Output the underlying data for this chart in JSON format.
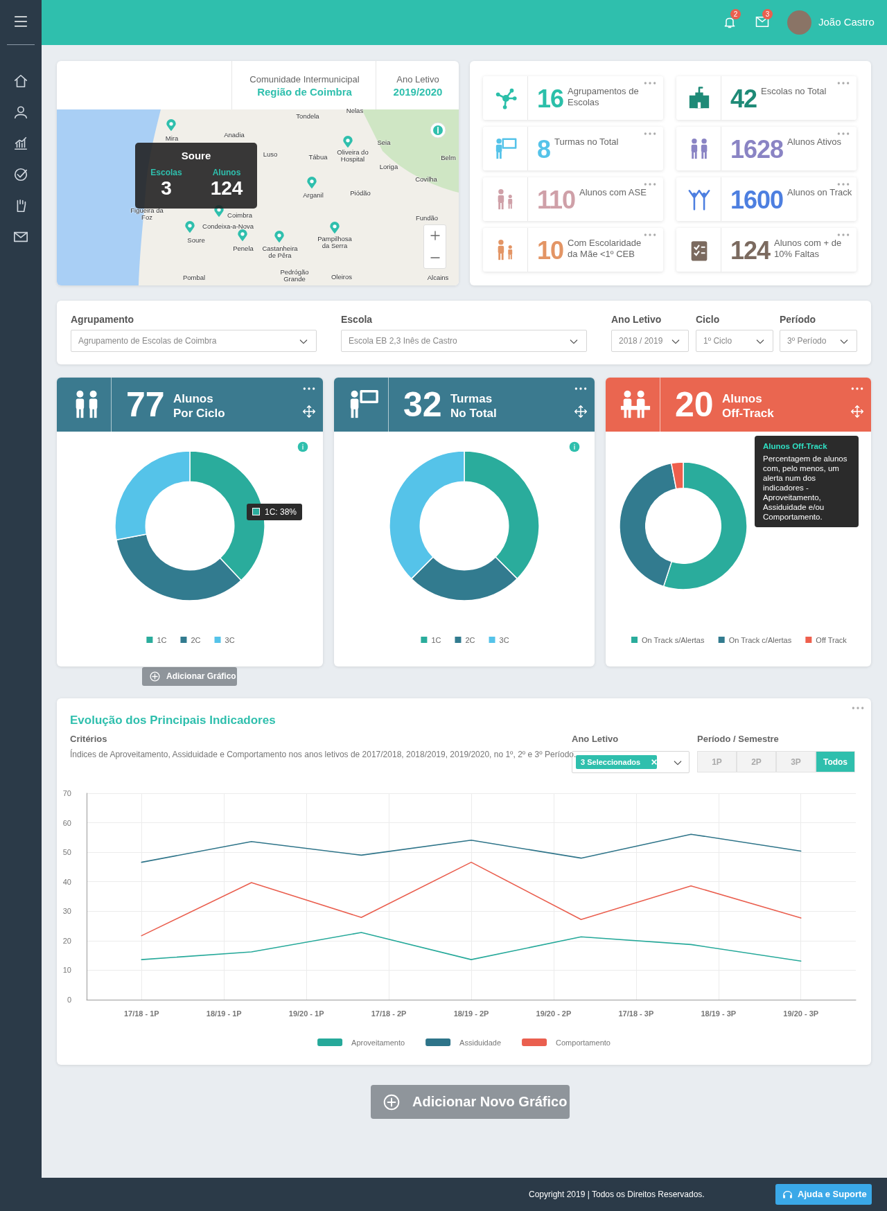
{
  "chart_data": [
    {
      "type": "other",
      "annotations": [
        "2",
        "3",
        "João Castro",
        "Adicionar Gráfico",
        "Adicionar Novo Gráfico",
        "Copyright 2019 | Todos os Direitos Reservados.",
        "Ajuda e Suporte"
      ]
    },
    {
      "type": "other",
      "title": "Comunidade Intermunicipal",
      "subtitle": "Região de Coimbra",
      "annotations": [
        "Ano Letivo",
        "2019/2020",
        "Soure",
        "Escolas",
        "3",
        "Alunos",
        "124",
        "Tondela",
        "Nelas",
        "Mira",
        "Anadia",
        "Luso",
        "Seia",
        "Tábua",
        "Oliveira do Hospital",
        "Loriga",
        "Belm",
        "Covilha",
        "Arganil",
        "Piódão",
        "Figueira da Foz",
        "Coimbra",
        "Condeixa-a-Nova",
        "Soure",
        "Penela",
        "Castanheira de Pêra",
        "Pampilhosa da Serra",
        "Fundão",
        "Pombal",
        "Pedrógão Grande",
        "Oleiros",
        "Alcains"
      ]
    },
    {
      "type": "other",
      "annotations": [
        "16",
        "Agrupamentos de Escolas",
        "42",
        "Escolas no Total",
        "8",
        "Turmas no Total",
        "1628",
        "Alunos Ativos",
        "110",
        "Alunos com ASE",
        "1600",
        "Alunos on Track",
        "10",
        "Com Escolaridade da Mãe <1º CEB",
        "124",
        "Alunos com + de 10% Faltas"
      ],
      "colors": [
        "#2bbfa9",
        "#1e8a77",
        "#55c3e9",
        "#8a84c4",
        "#cfa0a8",
        "#4d7fe0",
        "#e39565",
        "#7b6a5f"
      ]
    },
    {
      "type": "other",
      "annotations": [
        "Agrupamento",
        "Agrupamento de Escolas de Coimbra",
        "Escola",
        "Escola EB 2,3 Inês de Castro",
        "Ano Letivo",
        "2018 / 2019",
        "Ciclo",
        "1º Ciclo",
        "Período",
        "3º Período"
      ]
    },
    {
      "type": "donut",
      "title": "77",
      "subtitle": "Alunos Por Ciclo",
      "categories": [
        "1C",
        "2C",
        "3C"
      ],
      "values": [
        38,
        34,
        28
      ],
      "colors": [
        "#2aac9c",
        "#327b8f",
        "#55c3e9"
      ],
      "legend": "bottom",
      "annotations": [
        "1C: 38%"
      ]
    },
    {
      "type": "donut",
      "title": "32",
      "subtitle": "Turmas No Total",
      "categories": [
        "1C",
        "2C",
        "3C"
      ],
      "values": [
        37.5,
        25,
        37.5
      ],
      "colors": [
        "#2aac9c",
        "#327b8f",
        "#55c3e9"
      ],
      "legend": "bottom"
    },
    {
      "type": "donut",
      "title": "20",
      "subtitle": "Alunos Off-Track",
      "categories": [
        "On Track s/Alertas",
        "On Track c/Alertas",
        "Off Track"
      ],
      "values": [
        55,
        42,
        3
      ],
      "colors": [
        "#2aac9c",
        "#327b8f",
        "#ee5f4d"
      ],
      "legend": "bottom",
      "annotations": [
        "Alunos Off-Track",
        "Percentagem de alunos com, pelo menos, um alerta num dos indicadores - Aproveitamento, Assiduidade e/ou Comportamento."
      ]
    },
    {
      "type": "line",
      "title": "Evolução dos Principais Indicadores",
      "annotations": [
        "Critérios",
        "Índices de Aproveitamento, Assiduidade e Comportamento nos anos letivos de 2017/2018, 2018/2019, 2019/2020, no 1º, 2º e 3º Período.",
        "Ano Letivo",
        "3 Seleccionados",
        "Período / Semestre",
        "1P",
        "2P",
        "3P",
        "Todos"
      ],
      "categories": [
        null,
        null,
        "17/18 - 1P",
        null,
        null,
        "18/19 - 1P",
        null,
        null,
        "19/20 - 1P",
        null,
        null,
        "17/18 - 2P",
        null,
        null,
        "18/19 - 2P",
        null,
        null,
        "19/20 - 2P",
        null,
        null,
        "17/18 - 3P",
        null,
        null,
        "18/19 - 3P",
        null,
        null,
        "19/20 - 3P",
        null,
        null
      ],
      "series": [
        {
          "name": "Aproveitamento",
          "color": "#26a99a",
          "values": [
            null,
            null,
            13.6,
            null,
            null,
            null,
            16.2,
            null,
            null,
            null,
            22.8,
            null,
            null,
            null,
            13.6,
            null,
            null,
            null,
            21.3,
            null,
            null,
            null,
            18.7,
            null,
            null,
            null,
            13.1,
            null,
            null
          ]
        },
        {
          "name": "Assiduidade",
          "color": "#2e7489",
          "values": [
            null,
            null,
            46.6,
            null,
            null,
            null,
            53.6,
            null,
            null,
            null,
            49,
            null,
            null,
            null,
            54.1,
            null,
            null,
            null,
            48,
            null,
            null,
            null,
            56.1,
            null,
            null,
            null,
            50.4,
            null,
            null
          ]
        },
        {
          "name": "Comportamento",
          "color": "#ea5f4f",
          "values": [
            null,
            null,
            21.7,
            null,
            null,
            null,
            39.7,
            null,
            null,
            null,
            27.9,
            null,
            null,
            null,
            46.6,
            null,
            null,
            null,
            27.2,
            null,
            null,
            null,
            38.6,
            null,
            null,
            null,
            27.7,
            null,
            null
          ]
        }
      ],
      "ylim": [
        0,
        70
      ],
      "yticks": [
        0,
        10,
        20,
        30,
        40,
        50,
        60,
        70
      ],
      "grid": true,
      "legend": "bottom",
      "marker": "none",
      "line_style": "solid"
    }
  ]
}
